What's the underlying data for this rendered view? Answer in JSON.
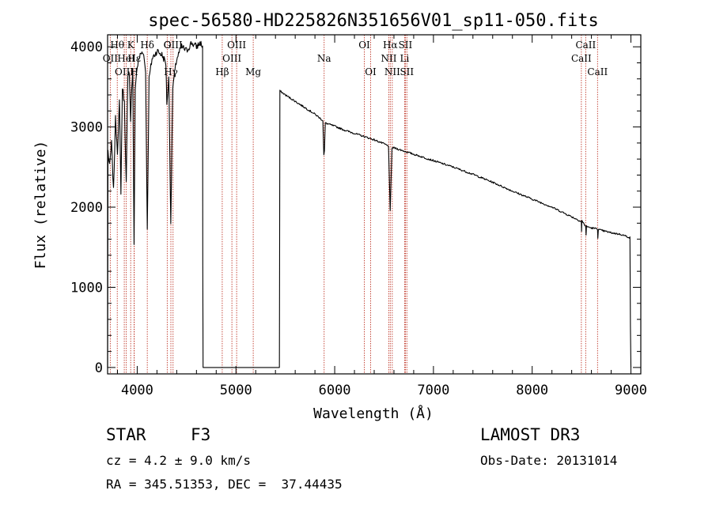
{
  "chart_data": {
    "type": "line",
    "title": "spec-56580-HD225826N351656V01_sp11-050.fits",
    "xlabel": "Wavelength (Å)",
    "ylabel": "Flux (relative)",
    "xlim": [
      3700,
      9100
    ],
    "ylim": [
      -80,
      4150
    ],
    "x_ticks": [
      4000,
      5000,
      6000,
      7000,
      8000,
      9000
    ],
    "y_ticks": [
      0,
      1000,
      2000,
      3000,
      4000
    ],
    "series": [
      {
        "name": "flux",
        "anchors": [
          [
            3700,
            0
          ],
          [
            3704,
            2700
          ],
          [
            3720,
            2500
          ],
          [
            3740,
            2800
          ],
          [
            3760,
            2200
          ],
          [
            3780,
            3100
          ],
          [
            3800,
            2700
          ],
          [
            3820,
            3300
          ],
          [
            3835,
            2200
          ],
          [
            3850,
            3500
          ],
          [
            3870,
            3300
          ],
          [
            3889,
            2300
          ],
          [
            3905,
            3600
          ],
          [
            3920,
            3700
          ],
          [
            3933,
            3100
          ],
          [
            3945,
            3500
          ],
          [
            3955,
            3700
          ],
          [
            3968,
            1500
          ],
          [
            3980,
            3500
          ],
          [
            4000,
            3750
          ],
          [
            4030,
            3900
          ],
          [
            4060,
            3950
          ],
          [
            4085,
            3700
          ],
          [
            4102,
            1700
          ],
          [
            4120,
            3600
          ],
          [
            4150,
            3850
          ],
          [
            4200,
            3950
          ],
          [
            4250,
            3900
          ],
          [
            4290,
            3800
          ],
          [
            4300,
            3300
          ],
          [
            4320,
            3600
          ],
          [
            4340,
            1800
          ],
          [
            4360,
            3500
          ],
          [
            4400,
            3850
          ],
          [
            4450,
            4000
          ],
          [
            4500,
            3950
          ],
          [
            4550,
            4050
          ],
          [
            4600,
            4000
          ],
          [
            4640,
            4050
          ],
          [
            4662,
            4000
          ],
          [
            4664,
            1300
          ],
          [
            4667,
            0
          ],
          [
            5440,
            0
          ],
          [
            5442,
            1300
          ],
          [
            5445,
            3450
          ],
          [
            5500,
            3400
          ],
          [
            5600,
            3320
          ],
          [
            5700,
            3240
          ],
          [
            5800,
            3160
          ],
          [
            5880,
            3080
          ],
          [
            5890,
            2650
          ],
          [
            5896,
            2700
          ],
          [
            5905,
            3050
          ],
          [
            6000,
            3010
          ],
          [
            6100,
            2960
          ],
          [
            6200,
            2920
          ],
          [
            6300,
            2880
          ],
          [
            6400,
            2840
          ],
          [
            6500,
            2790
          ],
          [
            6545,
            2760
          ],
          [
            6562,
            1950
          ],
          [
            6580,
            2740
          ],
          [
            6600,
            2740
          ],
          [
            6700,
            2700
          ],
          [
            6800,
            2660
          ],
          [
            6900,
            2620
          ],
          [
            7000,
            2580
          ],
          [
            7200,
            2500
          ],
          [
            7400,
            2410
          ],
          [
            7600,
            2310
          ],
          [
            7800,
            2200
          ],
          [
            8000,
            2100
          ],
          [
            8200,
            2000
          ],
          [
            8400,
            1880
          ],
          [
            8498,
            1820
          ],
          [
            8500,
            1700
          ],
          [
            8503,
            1830
          ],
          [
            8542,
            1760
          ],
          [
            8546,
            1650
          ],
          [
            8550,
            1760
          ],
          [
            8600,
            1740
          ],
          [
            8662,
            1730
          ],
          [
            8665,
            1620
          ],
          [
            8670,
            1720
          ],
          [
            8800,
            1680
          ],
          [
            8900,
            1660
          ],
          [
            8990,
            1620
          ],
          [
            8995,
            500
          ],
          [
            9000,
            0
          ]
        ]
      }
    ],
    "line_markers": [
      {
        "label": "Hθ",
        "x": 3798,
        "row": 1
      },
      {
        "label": "OII",
        "x": 3727,
        "row": 2
      },
      {
        "label": "OIII",
        "x": 3869,
        "row": 3
      },
      {
        "label": "K",
        "x": 3934,
        "row": 1
      },
      {
        "label": "H",
        "x": 3968,
        "row": 3
      },
      {
        "label": "HeI",
        "x": 3889,
        "row": 2
      },
      {
        "label": "Hε",
        "x": 3970,
        "row": 2
      },
      {
        "label": "Hδ",
        "x": 4102,
        "row": 1
      },
      {
        "label": "G",
        "x": 4304,
        "row": 1
      },
      {
        "label": "Hγ",
        "x": 4341,
        "row": 3
      },
      {
        "label": "OIII",
        "x": 4363,
        "row": 1
      },
      {
        "label": "Hβ",
        "x": 4861,
        "row": 3
      },
      {
        "label": "OIII",
        "x": 4959,
        "row": 2
      },
      {
        "label": "OIII",
        "x": 5007,
        "row": 1
      },
      {
        "label": "Mg",
        "x": 5175,
        "row": 3
      },
      {
        "label": "Na",
        "x": 5893,
        "row": 2
      },
      {
        "label": "OI",
        "x": 6300,
        "row": 1
      },
      {
        "label": "OI",
        "x": 6364,
        "row": 3
      },
      {
        "label": "NII",
        "x": 6548,
        "row": 2
      },
      {
        "label": "Hα",
        "x": 6563,
        "row": 1
      },
      {
        "label": "NII",
        "x": 6583,
        "row": 3
      },
      {
        "label": "Li",
        "x": 6708,
        "row": 2
      },
      {
        "label": "SII",
        "x": 6716,
        "row": 1
      },
      {
        "label": "SII",
        "x": 6731,
        "row": 3
      },
      {
        "label": "CaII",
        "x": 8498,
        "row": 2
      },
      {
        "label": "CaII",
        "x": 8542,
        "row": 1
      },
      {
        "label": "CaII",
        "x": 8662,
        "row": 3
      }
    ]
  },
  "info": {
    "object_class": "STAR",
    "subclass": "F3",
    "survey": "LAMOST DR3",
    "redshift": "cz = 4.2 ± 9.0 km/s",
    "obs_date": "Obs-Date: 20131014",
    "coords": "RA = 345.51353, DEC =  37.44435"
  },
  "colors": {
    "spectrum": "#000000",
    "marker_line": "#c0392b",
    "axes": "#000000"
  }
}
